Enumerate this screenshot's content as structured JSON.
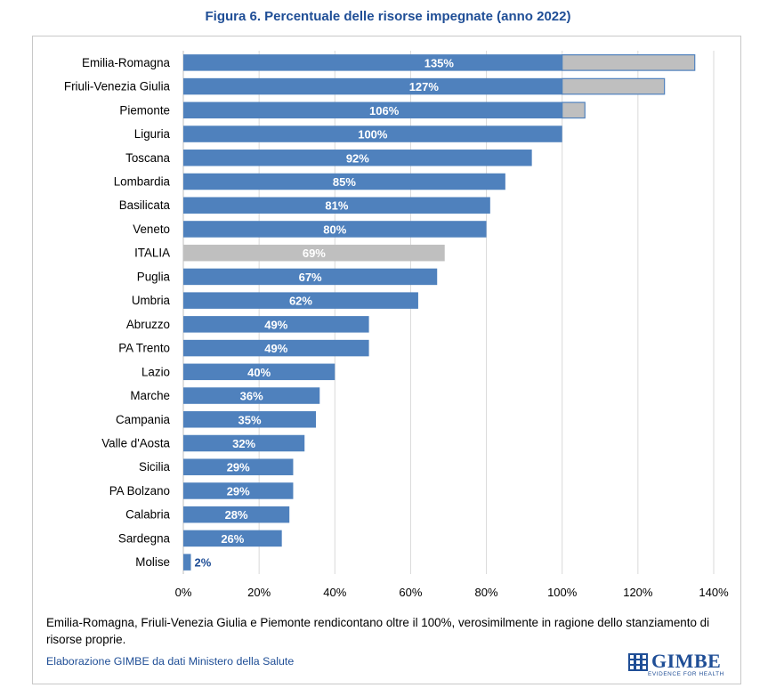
{
  "title": "Figura 6. Percentuale delle risorse impegnate (anno 2022)",
  "note": "Emilia-Romagna, Friuli-Venezia Giulia e Piemonte rendicontano oltre il 100%, verosimilmente in ragione dello stanziamento di risorse proprie.",
  "source": "Elaborazione GIMBE da dati Ministero della Salute",
  "logo": {
    "name": "GIMBE",
    "tagline": "EVIDENCE FOR HEALTH"
  },
  "colors": {
    "bar": "#4f81bd",
    "italia": "#bfbfbf",
    "excess": "#bfbfbf",
    "grid": "#d9d9d9",
    "title": "#1f4e96"
  },
  "chart_data": {
    "type": "bar",
    "orientation": "horizontal",
    "xlim": [
      0,
      140
    ],
    "xticks": [
      0,
      20,
      40,
      60,
      80,
      100,
      120,
      140
    ],
    "xtick_labels": [
      "0%",
      "20%",
      "40%",
      "60%",
      "80%",
      "100%",
      "120%",
      "140%"
    ],
    "grid": "vertical",
    "categories": [
      "Emilia-Romagna",
      "Friuli-Venezia Giulia",
      "Piemonte",
      "Liguria",
      "Toscana",
      "Lombardia",
      "Basilicata",
      "Veneto",
      "ITALIA",
      "Puglia",
      "Umbria",
      "Abruzzo",
      "PA Trento",
      "Lazio",
      "Marche",
      "Campania",
      "Valle d'Aosta",
      "Sicilia",
      "PA Bolzano",
      "Calabria",
      "Sardegna",
      "Molise"
    ],
    "values": [
      135,
      127,
      106,
      100,
      92,
      85,
      81,
      80,
      69,
      67,
      62,
      49,
      49,
      40,
      36,
      35,
      32,
      29,
      29,
      28,
      26,
      2
    ],
    "data_labels": [
      "135%",
      "127%",
      "106%",
      "100%",
      "92%",
      "85%",
      "81%",
      "80%",
      "69%",
      "67%",
      "62%",
      "49%",
      "49%",
      "40%",
      "36%",
      "35%",
      "32%",
      "29%",
      "29%",
      "28%",
      "26%",
      "2%"
    ],
    "highlight": "ITALIA",
    "cap": 100
  }
}
